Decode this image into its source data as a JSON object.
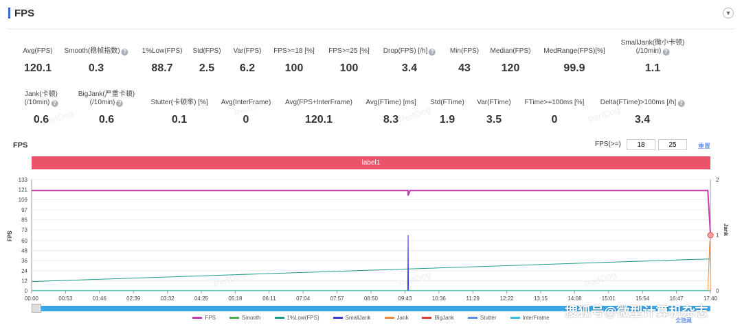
{
  "header": {
    "title": "FPS",
    "collapse_icon": "chevron-down-icon"
  },
  "stats_row1": [
    {
      "label": "Avg(FPS)",
      "value": "120.1",
      "help": false
    },
    {
      "label": "Smooth(稳帧指数)",
      "value": "0.3",
      "help": true
    },
    {
      "label": "1%Low(FPS)",
      "value": "88.7",
      "help": false
    },
    {
      "label": "Std(FPS)",
      "value": "2.5",
      "help": false
    },
    {
      "label": "Var(FPS)",
      "value": "6.2",
      "help": false
    },
    {
      "label": "FPS>=18 [%]",
      "value": "100",
      "help": false
    },
    {
      "label": "FPS>=25 [%]",
      "value": "100",
      "help": false
    },
    {
      "label": "Drop(FPS) [/h]",
      "value": "3.4",
      "help": true
    },
    {
      "label": "Min(FPS)",
      "value": "43",
      "help": false
    },
    {
      "label": "Median(FPS)",
      "value": "120",
      "help": false
    },
    {
      "label": "MedRange(FPS)[%]",
      "value": "99.9",
      "help": false
    },
    {
      "label": "SmallJank(微小卡顿)\n(/10min)",
      "value": "1.1",
      "help": true
    }
  ],
  "stats_row2": [
    {
      "label": "Jank(卡顿)\n(/10min)",
      "value": "0.6",
      "help": true
    },
    {
      "label": "BigJank(严重卡顿)\n(/10min)",
      "value": "0.6",
      "help": true
    },
    {
      "label": "Stutter(卡顿率) [%]",
      "value": "0.1",
      "help": false
    },
    {
      "label": "Avg(InterFrame)",
      "value": "0",
      "help": false
    },
    {
      "label": "Avg(FPS+InterFrame)",
      "value": "120.1",
      "help": false
    },
    {
      "label": "Avg(FTime) [ms]",
      "value": "8.3",
      "help": false
    },
    {
      "label": "Std(FTime)",
      "value": "1.9",
      "help": false
    },
    {
      "label": "Var(FTime)",
      "value": "3.5",
      "help": false
    },
    {
      "label": "FTime>=100ms [%]",
      "value": "0",
      "help": false
    },
    {
      "label": "Delta(FTime)>100ms [/h]",
      "value": "3.4",
      "help": true
    }
  ],
  "chart_section": {
    "title": "FPS",
    "threshold_label": "FPS(>=)",
    "threshold_1": "18",
    "threshold_2": "25",
    "reset_label": "重置",
    "label_bar": "label1",
    "hide_all": "全隐藏"
  },
  "watermark": "PerfDog",
  "brand_watermark": "搜狐号@微型计算机杂志",
  "chart_data": {
    "type": "line",
    "ylabel": "FPS",
    "ylabel_right": "Jank",
    "y_ticks": [
      0,
      12,
      24,
      36,
      48,
      60,
      73,
      85,
      97,
      109,
      121,
      133
    ],
    "ylim": [
      0,
      133
    ],
    "y2_ticks": [
      0,
      1,
      2
    ],
    "y2lim": [
      0,
      2
    ],
    "x_ticks": [
      "00:00",
      "00:53",
      "01:46",
      "02:39",
      "03:32",
      "04:25",
      "05:18",
      "06:11",
      "07:04",
      "07:57",
      "08:50",
      "09:43",
      "10:36",
      "11:29",
      "12:22",
      "13:15",
      "14:08",
      "15:01",
      "15:54",
      "16:47",
      "17:40"
    ],
    "series": [
      {
        "name": "FPS",
        "color": "#c43cb4",
        "axis": "left",
        "points": [
          [
            0,
            120
          ],
          [
            9.8,
            120
          ],
          [
            9.8,
            114
          ],
          [
            9.85,
            120
          ],
          [
            17.6,
            120
          ],
          [
            17.67,
            66
          ]
        ]
      },
      {
        "name": "Smooth",
        "color": "#4caf50",
        "axis": "left",
        "points": [
          [
            0,
            0.3
          ],
          [
            17.67,
            0.3
          ]
        ]
      },
      {
        "name": "1%Low(FPS)",
        "color": "#1a9e8a",
        "axis": "left",
        "points": [
          [
            0,
            11
          ],
          [
            17.6,
            38
          ],
          [
            17.67,
            38
          ]
        ]
      },
      {
        "name": "SmallJank",
        "color": "#3a3ad8",
        "axis": "right",
        "points": [
          [
            0,
            0
          ],
          [
            9.79,
            0
          ],
          [
            9.8,
            1
          ],
          [
            9.81,
            0
          ],
          [
            17.67,
            0
          ]
        ]
      },
      {
        "name": "Jank",
        "color": "#f08c3c",
        "axis": "right",
        "points": [
          [
            0,
            0
          ],
          [
            17.6,
            0
          ],
          [
            17.65,
            0.9
          ],
          [
            17.67,
            0
          ]
        ]
      },
      {
        "name": "BigJank",
        "color": "#e53935",
        "axis": "right",
        "points": [
          [
            0,
            0
          ],
          [
            17.67,
            0
          ]
        ]
      },
      {
        "name": "Stutter",
        "color": "#5b8def",
        "axis": "right",
        "points": [
          [
            0,
            0
          ],
          [
            17.67,
            0
          ]
        ]
      },
      {
        "name": "InterFrame",
        "color": "#39c0e0",
        "axis": "left",
        "points": [
          [
            0,
            0
          ],
          [
            17.67,
            0
          ]
        ]
      }
    ]
  }
}
